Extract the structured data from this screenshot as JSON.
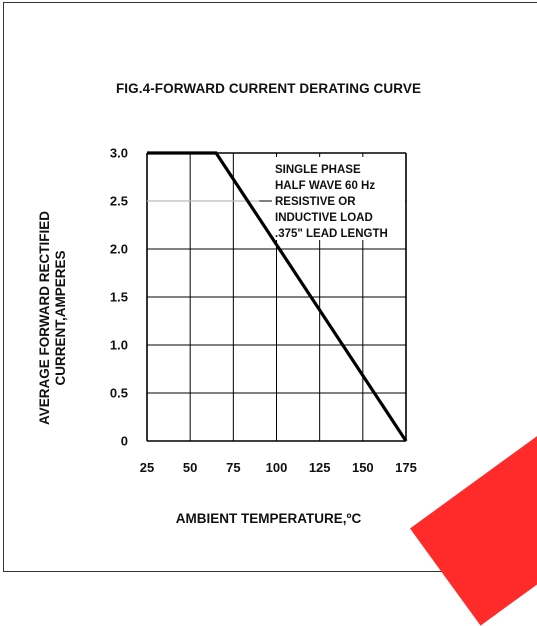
{
  "chart_data": {
    "type": "line",
    "title": "FIG.4-FORWARD CURRENT DERATING CURVE",
    "xlabel": "AMBIENT TEMPERATURE,ºC",
    "ylabel_lines": [
      "AVERAGE FORWARD RECTIFIED",
      "CURRENT,AMPERES"
    ],
    "xlim": [
      25,
      175
    ],
    "ylim": [
      0,
      3.0
    ],
    "x_ticks": [
      25,
      50,
      75,
      100,
      125,
      150,
      175
    ],
    "y_ticks": [
      0,
      0.5,
      1.0,
      1.5,
      2.0,
      2.5,
      3.0
    ],
    "x_tick_labels": [
      "25",
      "50",
      "75",
      "100",
      "125",
      "150",
      "175"
    ],
    "y_tick_labels": [
      "0",
      "0.5",
      "1.0",
      "1.5",
      "2.0",
      "2.5",
      "3.0"
    ],
    "grid": true,
    "series": [
      {
        "x": [
          25,
          65,
          175
        ],
        "y": [
          3.0,
          3.0,
          0
        ]
      }
    ],
    "annotation_lines": [
      "SINGLE PHASE",
      "HALF WAVE 60 Hz",
      "RESISTIVE OR",
      "INDUCTIVE LOAD",
      ".375\" LEAD LENGTH"
    ],
    "colors": {
      "curve": "#000000",
      "grid": "#000000",
      "highlight_grid": "#bbbbbb",
      "watermark": "#ff2a2a"
    }
  }
}
